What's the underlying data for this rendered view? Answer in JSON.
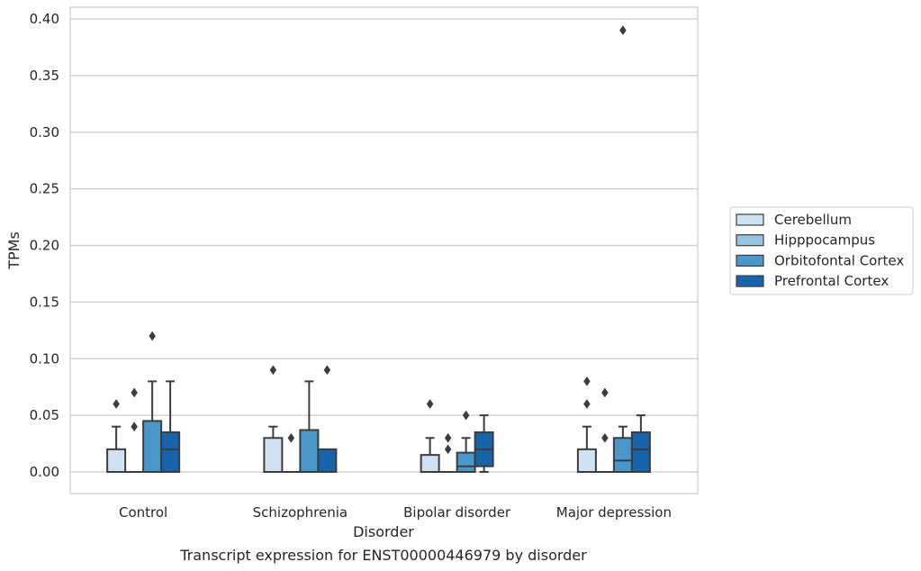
{
  "chart_data": {
    "type": "box",
    "xlabel": "Disorder",
    "ylabel": "TPMs",
    "caption": "Transcript expression for ENST00000446979 by disorder",
    "ylim": [
      -0.019,
      0.41
    ],
    "yticks": [
      "0.00",
      "0.05",
      "0.10",
      "0.15",
      "0.20",
      "0.25",
      "0.30",
      "0.35",
      "0.40"
    ],
    "ytick_values": [
      0.0,
      0.05,
      0.1,
      0.15,
      0.2,
      0.25,
      0.3,
      0.35,
      0.4
    ],
    "grid": true,
    "legend_placement": "right",
    "categories": [
      "Control",
      "Schizophrenia",
      "Bipolar disorder",
      "Major depression"
    ],
    "series": [
      {
        "name": "Cerebellum",
        "color": "#d0e1f2",
        "boxes": [
          {
            "q1": 0.0,
            "median": 0.0,
            "q3": 0.02,
            "whisker_low": 0.0,
            "whisker_high": 0.04,
            "outliers": [
              0.06
            ]
          },
          {
            "q1": 0.0,
            "median": 0.0,
            "q3": 0.03,
            "whisker_low": 0.0,
            "whisker_high": 0.04,
            "outliers": [
              0.09
            ]
          },
          {
            "q1": 0.0,
            "median": 0.0,
            "q3": 0.015,
            "whisker_low": 0.0,
            "whisker_high": 0.03,
            "outliers": [
              0.06
            ]
          },
          {
            "q1": 0.0,
            "median": 0.0,
            "q3": 0.02,
            "whisker_low": 0.0,
            "whisker_high": 0.04,
            "outliers": [
              0.06,
              0.08
            ]
          }
        ]
      },
      {
        "name": "Hipppocampus",
        "color": "#94c4df",
        "boxes": [
          {
            "q1": 0.0,
            "median": 0.0,
            "q3": 0.0,
            "whisker_low": 0.0,
            "whisker_high": 0.0,
            "outliers": [
              0.04,
              0.07
            ]
          },
          {
            "q1": 0.0,
            "median": 0.0,
            "q3": 0.0,
            "whisker_low": 0.0,
            "whisker_high": 0.0,
            "outliers": [
              0.03
            ]
          },
          {
            "q1": 0.0,
            "median": 0.0,
            "q3": 0.0,
            "whisker_low": 0.0,
            "whisker_high": 0.0,
            "outliers": [
              0.02,
              0.03
            ]
          },
          {
            "q1": 0.0,
            "median": 0.0,
            "q3": 0.0,
            "whisker_low": 0.0,
            "whisker_high": 0.0,
            "outliers": [
              0.03,
              0.07
            ]
          }
        ]
      },
      {
        "name": "Orbitofontal Cortex",
        "color": "#4a98c9",
        "boxes": [
          {
            "q1": 0.0,
            "median": 0.0,
            "q3": 0.045,
            "whisker_low": 0.0,
            "whisker_high": 0.08,
            "outliers": [
              0.12
            ]
          },
          {
            "q1": 0.0,
            "median": 0.0,
            "q3": 0.037,
            "whisker_low": 0.0,
            "whisker_high": 0.08,
            "outliers": []
          },
          {
            "q1": 0.0,
            "median": 0.005,
            "q3": 0.017,
            "whisker_low": 0.0,
            "whisker_high": 0.03,
            "outliers": [
              0.05
            ]
          },
          {
            "q1": 0.0,
            "median": 0.01,
            "q3": 0.03,
            "whisker_low": 0.0,
            "whisker_high": 0.04,
            "outliers": [
              0.39
            ]
          }
        ]
      },
      {
        "name": "Prefrontal Cortex",
        "color": "#1764ab",
        "boxes": [
          {
            "q1": 0.0,
            "median": 0.02,
            "q3": 0.035,
            "whisker_low": 0.0,
            "whisker_high": 0.08,
            "outliers": []
          },
          {
            "q1": 0.0,
            "median": 0.0,
            "q3": 0.02,
            "whisker_low": 0.0,
            "whisker_high": 0.02,
            "outliers": [
              0.09
            ]
          },
          {
            "q1": 0.005,
            "median": 0.02,
            "q3": 0.035,
            "whisker_low": 0.0,
            "whisker_high": 0.05,
            "outliers": []
          },
          {
            "q1": 0.0,
            "median": 0.02,
            "q3": 0.035,
            "whisker_low": 0.0,
            "whisker_high": 0.05,
            "outliers": []
          }
        ]
      }
    ]
  }
}
